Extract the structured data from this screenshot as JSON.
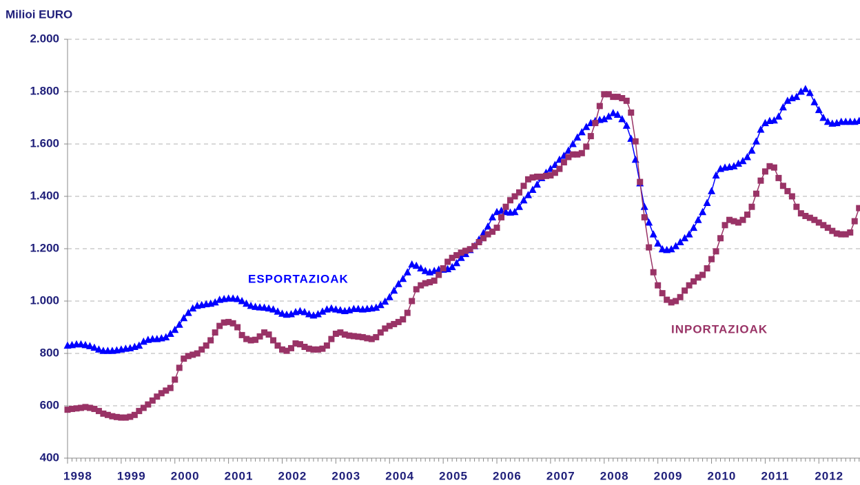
{
  "chart_data": {
    "type": "line",
    "ylabel": "Milioi EURO",
    "annotations": [
      "ESPORTAZIOAK",
      "INPORTAZIOAK"
    ],
    "categories": [
      "1998",
      null,
      null,
      null,
      null,
      null,
      null,
      null,
      null,
      null,
      null,
      null,
      "1999",
      null,
      null,
      null,
      null,
      null,
      null,
      null,
      null,
      null,
      null,
      null,
      "2000",
      null,
      null,
      null,
      null,
      null,
      null,
      null,
      null,
      null,
      null,
      null,
      "2001",
      null,
      null,
      null,
      null,
      null,
      null,
      null,
      null,
      null,
      null,
      null,
      "2002",
      null,
      null,
      null,
      null,
      null,
      null,
      null,
      null,
      null,
      null,
      null,
      "2003",
      null,
      null,
      null,
      null,
      null,
      null,
      null,
      null,
      null,
      null,
      null,
      "2004",
      null,
      null,
      null,
      null,
      null,
      null,
      null,
      null,
      null,
      null,
      null,
      "2005",
      null,
      null,
      null,
      null,
      null,
      null,
      null,
      null,
      null,
      null,
      null,
      "2006",
      null,
      null,
      null,
      null,
      null,
      null,
      null,
      null,
      null,
      null,
      null,
      "2007",
      null,
      null,
      null,
      null,
      null,
      null,
      null,
      null,
      null,
      null,
      null,
      "2008",
      null,
      null,
      null,
      null,
      null,
      null,
      null,
      null,
      null,
      null,
      null,
      "2009",
      null,
      null,
      null,
      null,
      null,
      null,
      null,
      null,
      null,
      null,
      null,
      "2010",
      null,
      null,
      null,
      null,
      null,
      null,
      null,
      null,
      null,
      null,
      null,
      "2011",
      null,
      null,
      null,
      null,
      null,
      null,
      null,
      null,
      null,
      null,
      null,
      "2012",
      null,
      null,
      null,
      null,
      null,
      null,
      null,
      null,
      null
    ],
    "series": [
      {
        "name": "ESPORTAZIOAK",
        "color": "#0000ff",
        "marker": "triangle",
        "values": [
          830,
          832,
          835,
          835,
          832,
          828,
          822,
          815,
          810,
          810,
          810,
          812,
          815,
          818,
          820,
          825,
          830,
          845,
          852,
          855,
          855,
          858,
          862,
          875,
          890,
          910,
          935,
          955,
          972,
          982,
          985,
          988,
          990,
          995,
          1005,
          1008,
          1010,
          1010,
          1008,
          1000,
          990,
          982,
          978,
          976,
          975,
          972,
          968,
          960,
          952,
          948,
          950,
          958,
          962,
          958,
          950,
          945,
          950,
          960,
          968,
          972,
          968,
          965,
          962,
          965,
          970,
          970,
          968,
          970,
          972,
          975,
          985,
          998,
          1015,
          1040,
          1065,
          1085,
          1110,
          1140,
          1135,
          1125,
          1115,
          1110,
          1115,
          1120,
          1120,
          1122,
          1130,
          1145,
          1165,
          1180,
          1195,
          1210,
          1235,
          1260,
          1285,
          1320,
          1340,
          1345,
          1340,
          1338,
          1340,
          1360,
          1385,
          1405,
          1425,
          1445,
          1470,
          1490,
          1505,
          1520,
          1540,
          1555,
          1575,
          1600,
          1625,
          1645,
          1665,
          1680,
          1688,
          1692,
          1695,
          1705,
          1718,
          1712,
          1695,
          1670,
          1620,
          1540,
          1450,
          1360,
          1300,
          1255,
          1220,
          1198,
          1195,
          1198,
          1210,
          1225,
          1240,
          1255,
          1280,
          1310,
          1340,
          1375,
          1420,
          1480,
          1505,
          1510,
          1512,
          1515,
          1525,
          1535,
          1550,
          1575,
          1610,
          1655,
          1680,
          1688,
          1690,
          1705,
          1740,
          1765,
          1775,
          1780,
          1800,
          1810,
          1795,
          1760,
          1730,
          1700,
          1685,
          1678,
          1680,
          1685,
          1685,
          1685,
          1685,
          1688
        ]
      },
      {
        "name": "INPORTAZIOAK",
        "color": "#993366",
        "marker": "square",
        "values": [
          585,
          588,
          590,
          592,
          595,
          592,
          588,
          580,
          570,
          565,
          560,
          557,
          555,
          555,
          558,
          565,
          580,
          592,
          605,
          620,
          635,
          648,
          658,
          668,
          700,
          745,
          780,
          790,
          795,
          800,
          815,
          830,
          850,
          880,
          905,
          918,
          920,
          915,
          900,
          870,
          855,
          850,
          852,
          865,
          880,
          872,
          850,
          830,
          815,
          810,
          820,
          838,
          835,
          825,
          818,
          815,
          815,
          818,
          830,
          855,
          875,
          880,
          872,
          868,
          866,
          864,
          862,
          858,
          855,
          862,
          880,
          895,
          905,
          912,
          920,
          930,
          955,
          1000,
          1045,
          1060,
          1068,
          1072,
          1078,
          1100,
          1125,
          1150,
          1165,
          1175,
          1185,
          1192,
          1198,
          1210,
          1225,
          1240,
          1255,
          1265,
          1280,
          1320,
          1360,
          1385,
          1400,
          1415,
          1440,
          1465,
          1472,
          1475,
          1475,
          1478,
          1480,
          1490,
          1505,
          1530,
          1550,
          1560,
          1560,
          1565,
          1590,
          1630,
          1680,
          1745,
          1790,
          1790,
          1780,
          1780,
          1775,
          1765,
          1720,
          1610,
          1455,
          1320,
          1205,
          1110,
          1060,
          1030,
          1005,
          995,
          1000,
          1015,
          1040,
          1060,
          1075,
          1090,
          1100,
          1125,
          1160,
          1190,
          1240,
          1290,
          1310,
          1305,
          1300,
          1310,
          1330,
          1360,
          1410,
          1460,
          1495,
          1515,
          1510,
          1470,
          1440,
          1420,
          1400,
          1360,
          1335,
          1325,
          1318,
          1310,
          1300,
          1290,
          1280,
          1268,
          1258,
          1255,
          1255,
          1262,
          1305,
          1355
        ]
      }
    ],
    "ylim": [
      400,
      2000
    ],
    "yticks": [
      400,
      600,
      800,
      {
        "value": 1000,
        "label": "1.000"
      },
      {
        "value": 1200,
        "label": "1.200"
      },
      {
        "value": 1400,
        "label": "1.400"
      },
      {
        "value": 1600,
        "label": "1.600"
      },
      {
        "value": 1800,
        "label": "1.800"
      },
      {
        "value": 2000,
        "label": "2.000"
      }
    ],
    "grid": true
  }
}
